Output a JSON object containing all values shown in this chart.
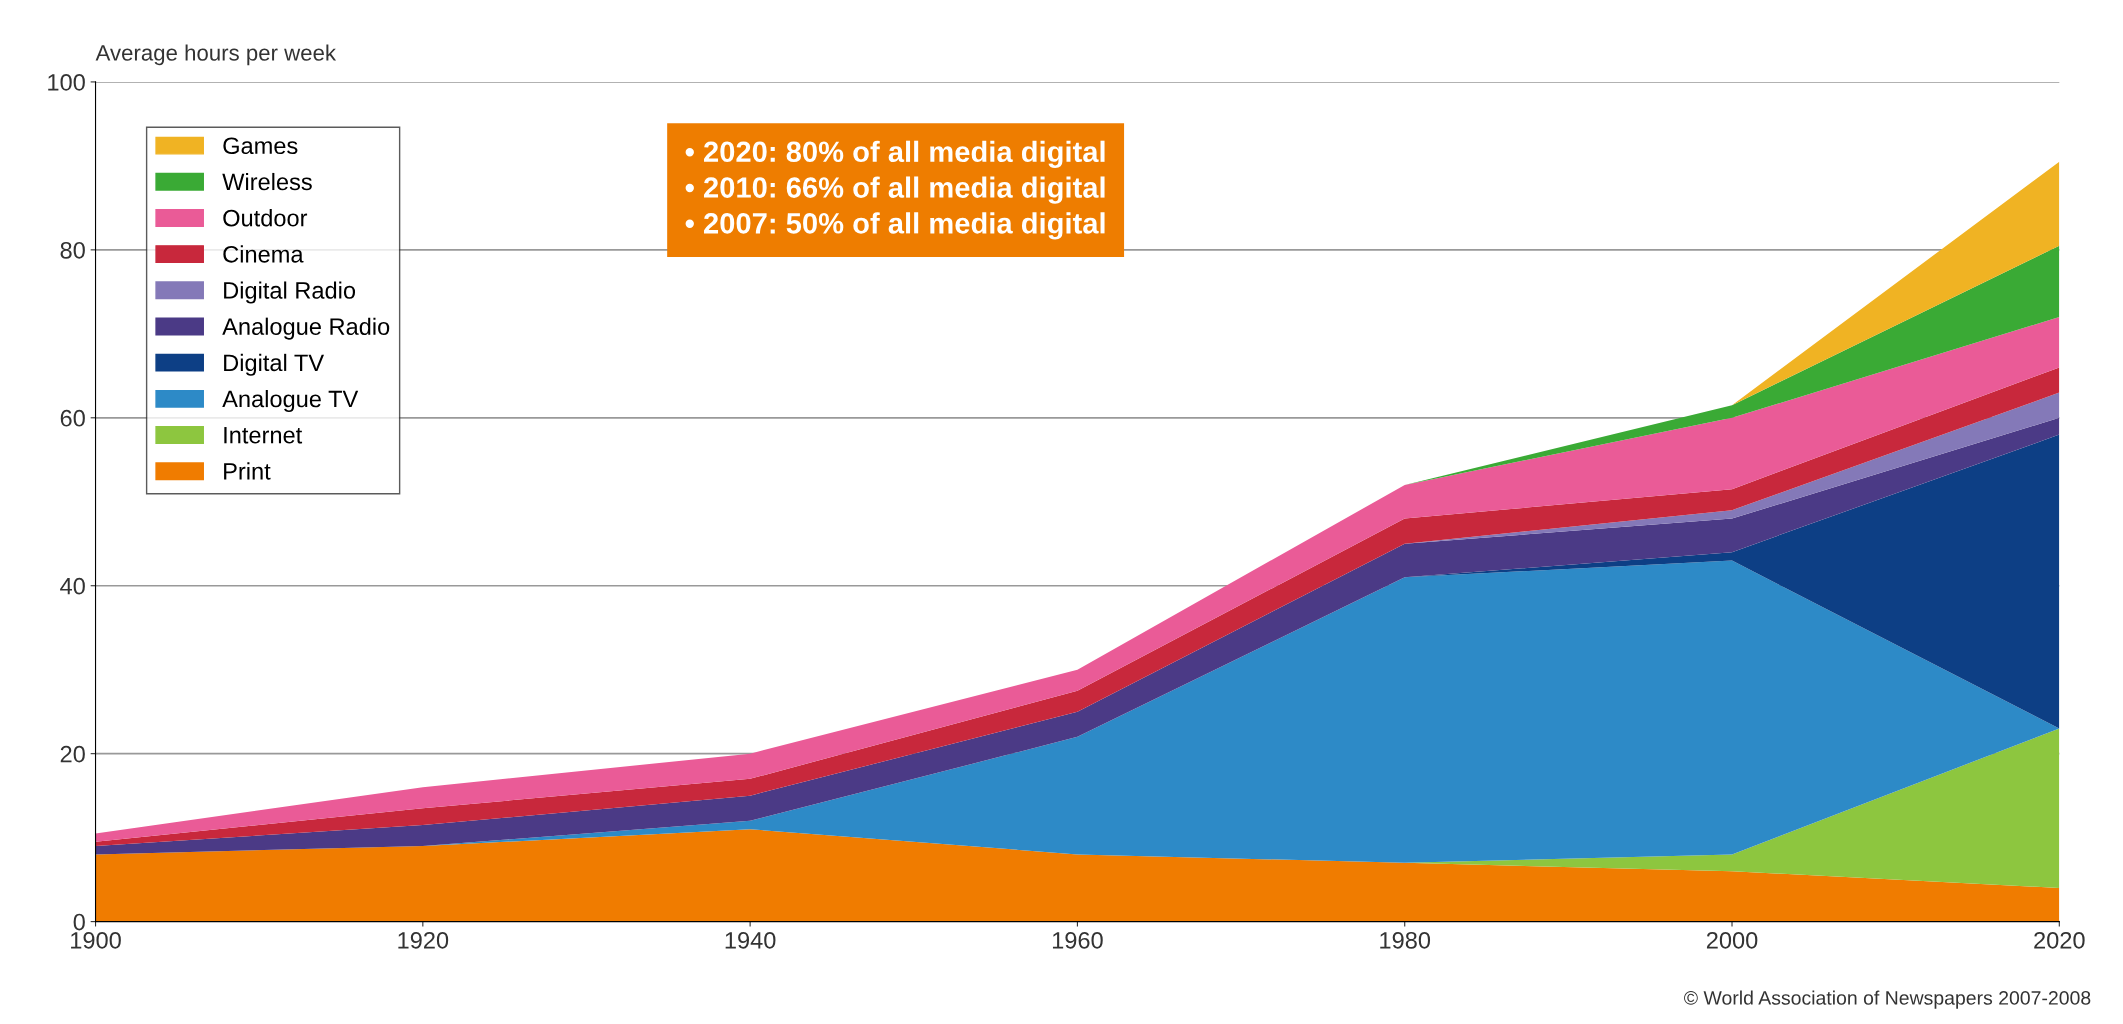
{
  "chart_data": {
    "type": "area",
    "stacked": true,
    "ylabel": "Average hours per week",
    "x": [
      1900,
      1920,
      1940,
      1960,
      1980,
      2000,
      2020
    ],
    "xlim": [
      1900,
      2020
    ],
    "xticks": [
      1900,
      1920,
      1940,
      1960,
      1980,
      2000,
      2020
    ],
    "ylim": [
      0,
      100
    ],
    "yticks": [
      0,
      20,
      40,
      60,
      80,
      100
    ],
    "grid": "y",
    "legend": "top left",
    "series": [
      {
        "name": "Print",
        "color": "#f07c00",
        "values": [
          8,
          9,
          11,
          8,
          7,
          6,
          4
        ]
      },
      {
        "name": "Internet",
        "color": "#8dc63f",
        "values": [
          0,
          0,
          0,
          0,
          0,
          2,
          19
        ]
      },
      {
        "name": "Analogue TV",
        "color": "#2d8ac7",
        "values": [
          0,
          0,
          1,
          14,
          34,
          35,
          0
        ]
      },
      {
        "name": "Digital TV",
        "color": "#0d3f85",
        "values": [
          0,
          0,
          0,
          0,
          0,
          1,
          35
        ]
      },
      {
        "name": "Analogue Radio",
        "color": "#4b3a86",
        "values": [
          1,
          2.5,
          3,
          3,
          4,
          4,
          2
        ]
      },
      {
        "name": "Digital Radio",
        "color": "#8479b8",
        "values": [
          0,
          0,
          0,
          0,
          0,
          1,
          3
        ]
      },
      {
        "name": "Cinema",
        "color": "#c8283c",
        "values": [
          0.5,
          2,
          2,
          2.5,
          3,
          2.5,
          3
        ]
      },
      {
        "name": "Outdoor",
        "color": "#ea5b97",
        "values": [
          1,
          2.5,
          3,
          2.5,
          4,
          8.5,
          6
        ]
      },
      {
        "name": "Wireless",
        "color": "#3aaa35",
        "values": [
          0,
          0,
          0,
          0,
          0,
          1.5,
          8.5
        ]
      },
      {
        "name": "Games",
        "color": "#f0b323",
        "values": [
          0,
          0,
          0,
          0,
          0,
          0,
          10
        ]
      }
    ],
    "annotations": [
      "• 2020: 80% of all media digital",
      "• 2010: 66% of all media digital",
      "• 2007: 50% of all media digital",
      "© World Association of Newspapers 2007-2008"
    ]
  }
}
